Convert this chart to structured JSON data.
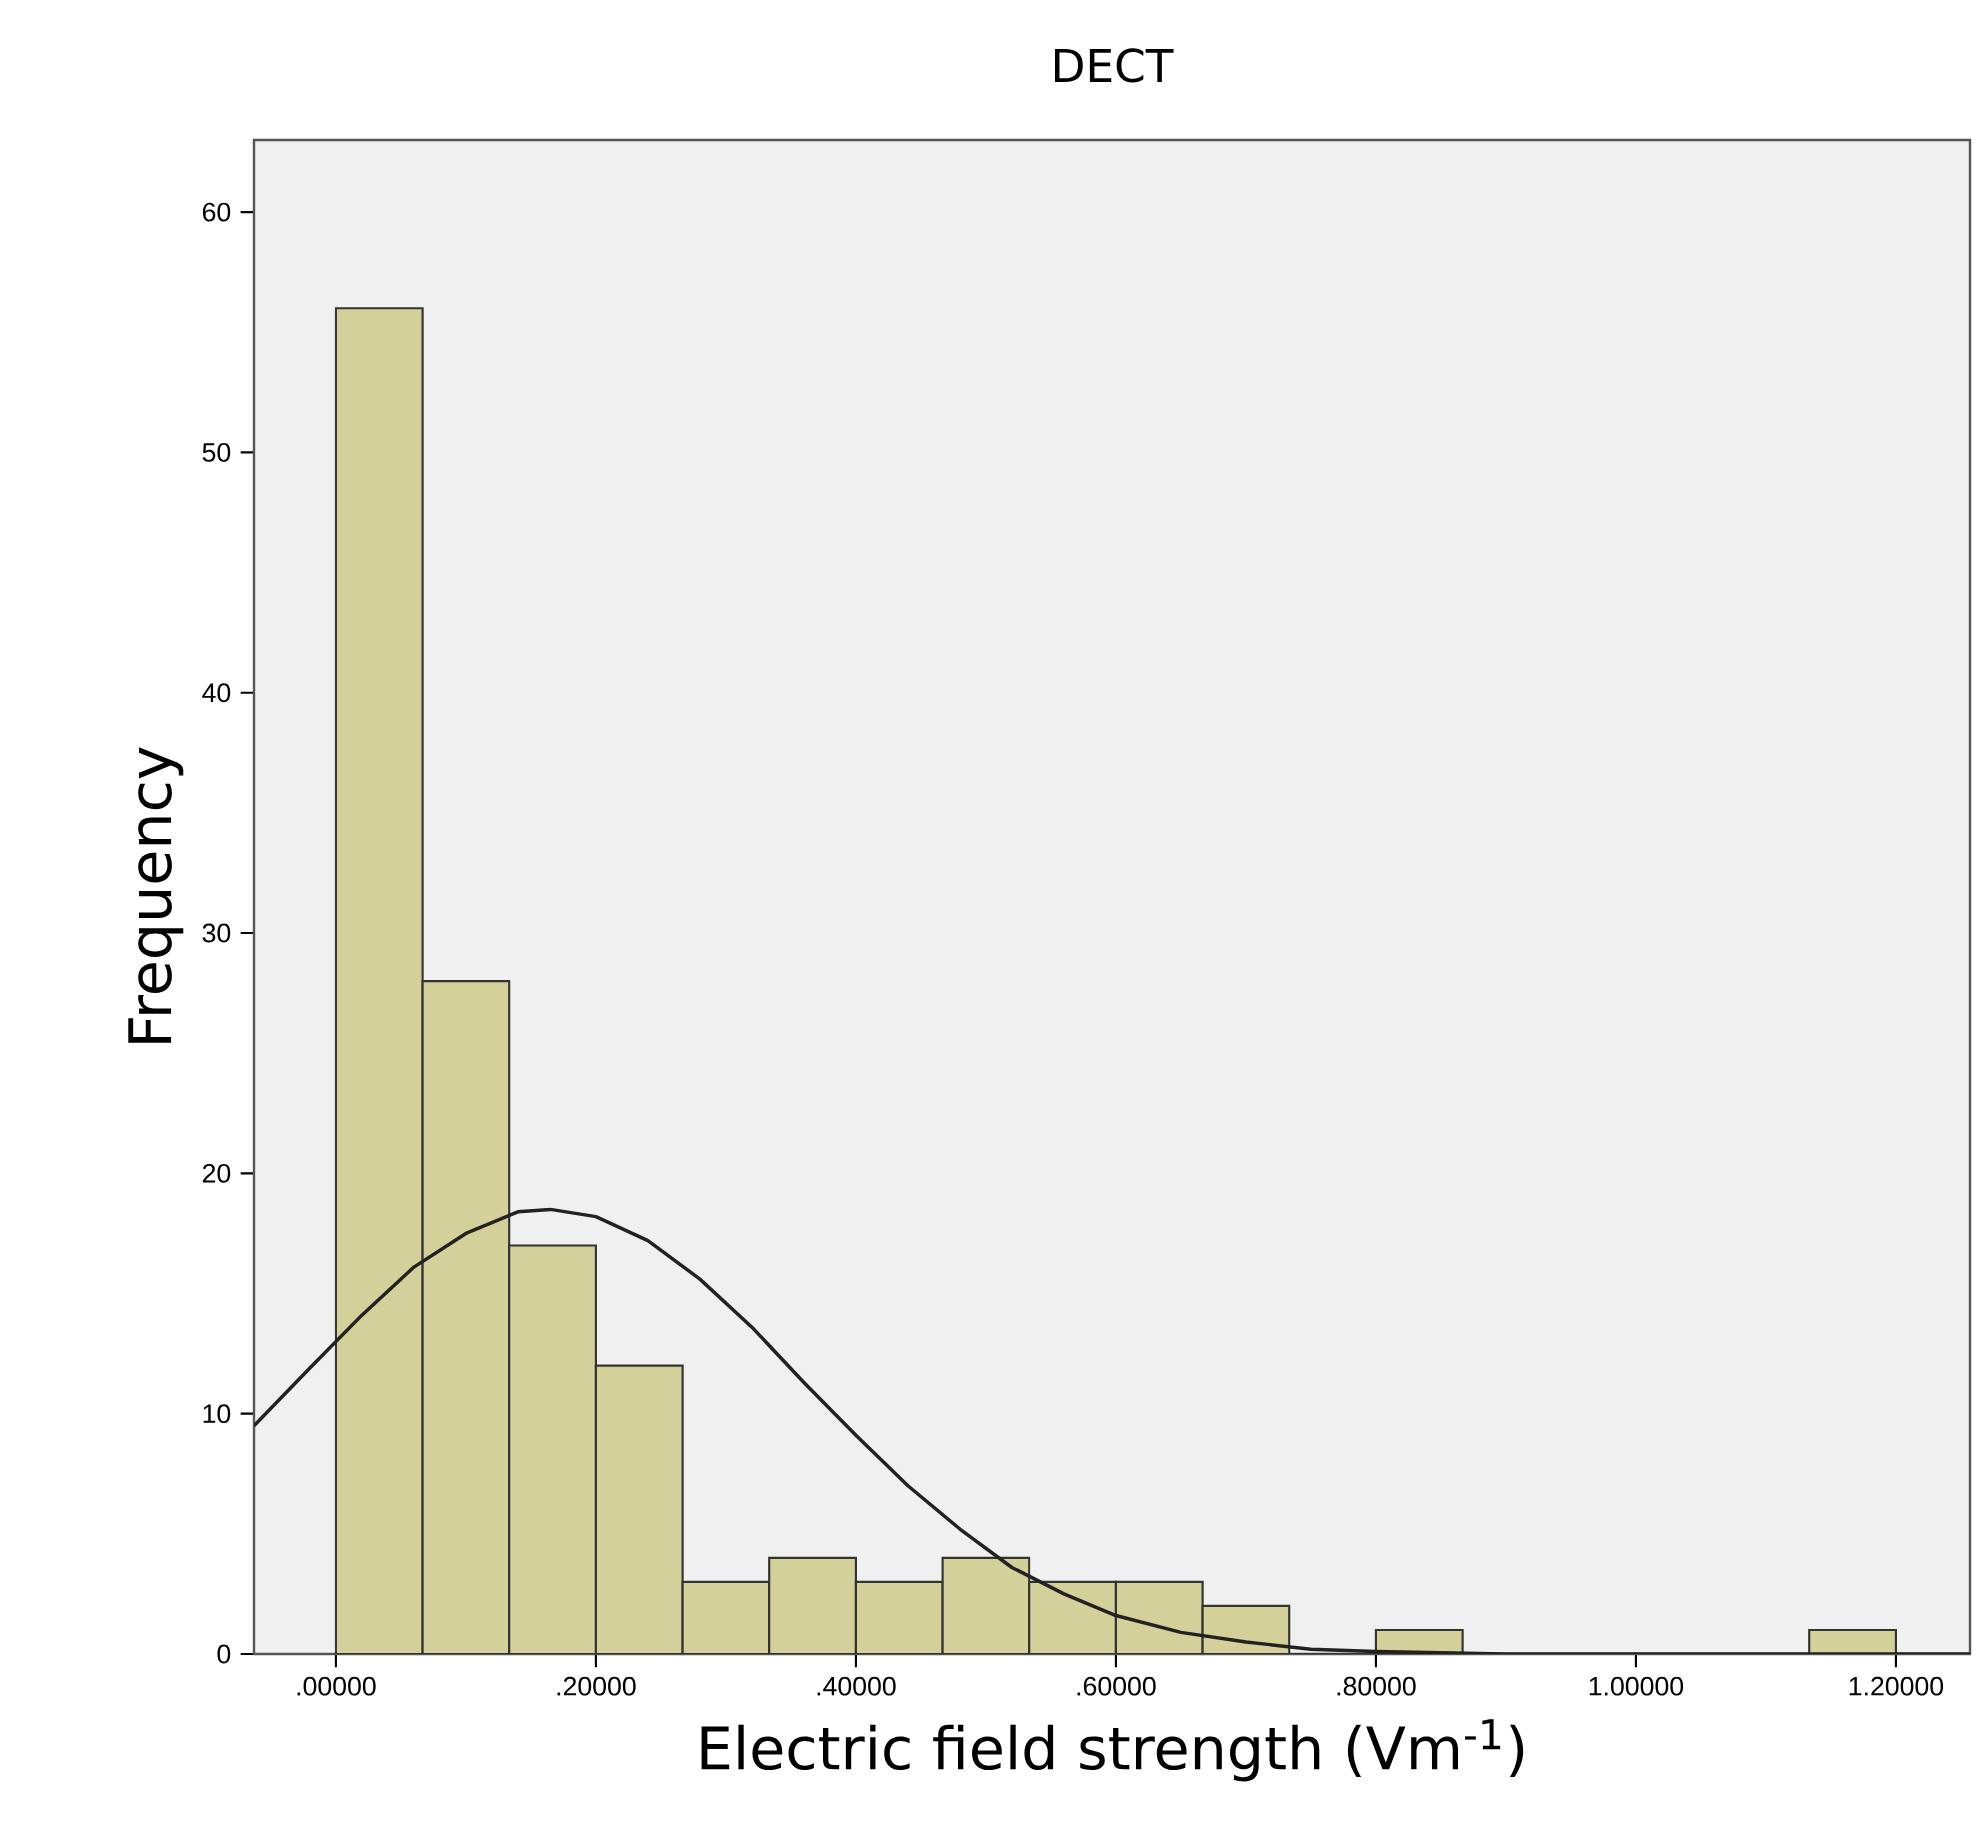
{
  "chart_data": {
    "type": "histogram",
    "title": "DECT",
    "xlabel": "Electric field strength (Vm$^{-1}$)",
    "ylabel": "Frequency",
    "bins": [
      0,
      0.0667,
      0.1333,
      0.2,
      0.2667,
      0.3333,
      0.4,
      0.4667,
      0.5333,
      0.6,
      0.6667,
      0.7333,
      0.8,
      0.8667,
      0.9333,
      1.0,
      1.0667,
      1.1333,
      1.2
    ],
    "values": [
      56,
      28,
      17,
      12,
      3,
      4,
      3,
      4,
      3,
      3,
      2,
      0,
      1,
      0,
      0,
      0,
      0,
      1
    ],
    "color": "#d4d09a",
    "series": [
      {
        "type": "line",
        "color": "#222222",
        "x": [
          -0.063,
          -0.02,
          0.02,
          0.06,
          0.1,
          0.14,
          0.165,
          0.2,
          0.24,
          0.28,
          0.32,
          0.36,
          0.4,
          0.44,
          0.48,
          0.52,
          0.56,
          0.6,
          0.65,
          0.7,
          0.75,
          0.8,
          0.9,
          1.0,
          1.1,
          1.257
        ],
        "values": [
          9.5,
          11.9,
          14.1,
          16.1,
          17.5,
          18.4,
          18.5,
          18.2,
          17.2,
          15.6,
          13.6,
          11.3,
          9.1,
          7.0,
          5.2,
          3.6,
          2.5,
          1.6,
          0.9,
          0.5,
          0.2,
          0.1,
          0,
          0,
          0,
          0
        ]
      }
    ],
    "xlim": [
      -0.063,
      1.257
    ],
    "ylim": [
      0,
      63
    ],
    "xticks": [
      {
        "value": 0,
        "label": ".00000"
      },
      {
        "value": 0.2,
        "label": ".20000"
      },
      {
        "value": 0.4,
        "label": ".40000"
      },
      {
        "value": 0.6,
        "label": ".60000"
      },
      {
        "value": 0.8,
        "label": ".80000"
      },
      {
        "value": 1.0,
        "label": "1.00000"
      },
      {
        "value": 1.2,
        "label": "1.20000"
      }
    ],
    "yticks": [
      0,
      10,
      20,
      30,
      40,
      50,
      60
    ]
  }
}
